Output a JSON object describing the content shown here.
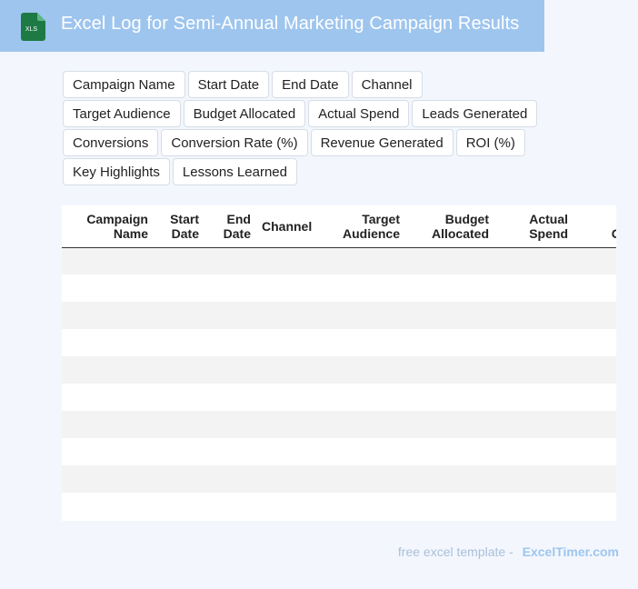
{
  "header": {
    "icon_label": "XLS",
    "title": "Excel Log for Semi-Annual Marketing Campaign Results"
  },
  "colors": {
    "banner": "#9ec5ee",
    "background": "#f3f7fd",
    "icon_green": "#1e7a45"
  },
  "fields": [
    "Campaign Name",
    "Start Date",
    "End Date",
    "Channel",
    "Target Audience",
    "Budget Allocated",
    "Actual Spend",
    "Leads Generated",
    "Conversions",
    "Conversion Rate (%)",
    "Revenue Generated",
    "ROI (%)",
    "Key Highlights",
    "Lessons Learned"
  ],
  "table": {
    "columns": [
      "Campaign\nName",
      "Start\nDate",
      "End\nDate",
      "Channel",
      "Target\nAudience",
      "Budget\nAllocated",
      "Actual\nSpend",
      "Leads\nGenerated"
    ],
    "rows": [
      [],
      [],
      [],
      [],
      [],
      [],
      [],
      [],
      [],
      []
    ]
  },
  "footer": {
    "prefix": "free excel template -",
    "brand": "ExcelTimer.com"
  }
}
